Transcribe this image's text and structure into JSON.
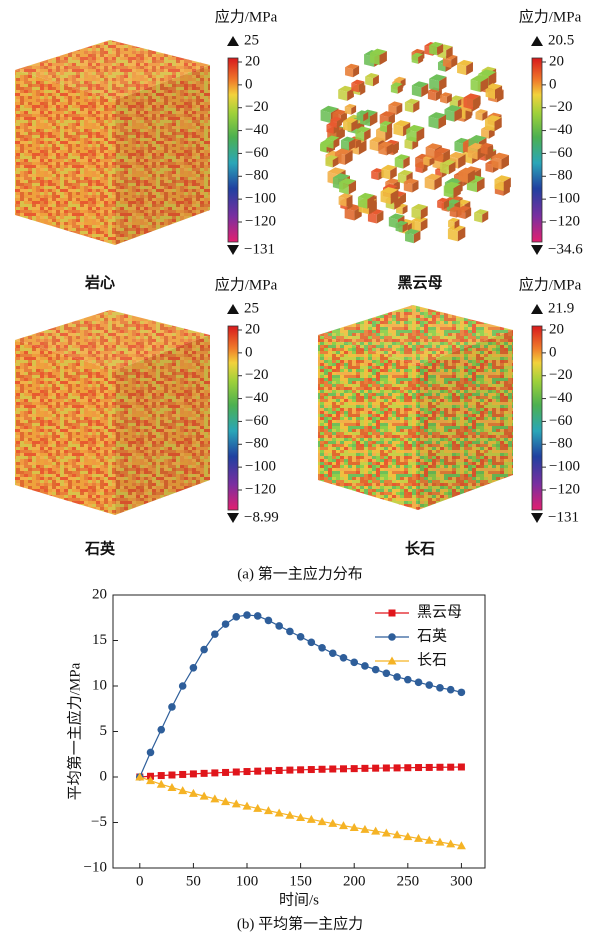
{
  "panel_a": {
    "caption": "(a) 第一主应力分布",
    "colorbar_ticks": [
      20,
      0,
      -20,
      -40,
      -60,
      -80,
      -100,
      -120
    ],
    "panels": [
      {
        "label": "岩心",
        "unit_title": "应力/MPa",
        "max": 25,
        "min": -131
      },
      {
        "label": "黑云母",
        "unit_title": "应力/MPa",
        "max": 20.5,
        "min": -34.6
      },
      {
        "label": "石英",
        "unit_title": "应力/MPa",
        "max": 25,
        "min": -8.99
      },
      {
        "label": "长石",
        "unit_title": "应力/MPa",
        "max": 21.9,
        "min": -131
      }
    ]
  },
  "chart_data": {
    "type": "line",
    "caption": "(b) 平均第一主应力",
    "x_label": "时间/s",
    "y_label": "平均第一主应力/MPa",
    "x": [
      0,
      10,
      20,
      30,
      40,
      50,
      60,
      70,
      80,
      90,
      100,
      110,
      120,
      130,
      140,
      150,
      160,
      170,
      180,
      190,
      200,
      210,
      220,
      230,
      240,
      250,
      260,
      270,
      280,
      290,
      300
    ],
    "series": [
      {
        "name": "黑云母",
        "color": "#e0151b",
        "marker": "square",
        "values": [
          0,
          0.08,
          0.16,
          0.22,
          0.28,
          0.34,
          0.4,
          0.45,
          0.5,
          0.55,
          0.6,
          0.64,
          0.68,
          0.72,
          0.76,
          0.79,
          0.82,
          0.85,
          0.88,
          0.9,
          0.92,
          0.95,
          0.97,
          0.99,
          1.0,
          1.02,
          1.04,
          1.05,
          1.07,
          1.08,
          1.1
        ]
      },
      {
        "name": "石英",
        "color": "#2e5e9a",
        "marker": "circle",
        "values": [
          0,
          2.7,
          5.2,
          7.7,
          10,
          12,
          14,
          15.7,
          16.8,
          17.6,
          17.8,
          17.7,
          17.2,
          16.6,
          16.0,
          15.4,
          14.8,
          14.2,
          13.6,
          13.1,
          12.6,
          12.2,
          11.8,
          11.4,
          11.0,
          10.7,
          10.4,
          10.1,
          9.8,
          9.6,
          9.3
        ]
      },
      {
        "name": "长石",
        "color": "#f5b325",
        "marker": "triangle",
        "values": [
          0,
          -0.4,
          -0.8,
          -1.15,
          -1.5,
          -1.8,
          -2.1,
          -2.4,
          -2.7,
          -2.95,
          -3.2,
          -3.45,
          -3.7,
          -3.95,
          -4.2,
          -4.45,
          -4.65,
          -4.9,
          -5.1,
          -5.35,
          -5.55,
          -5.75,
          -5.95,
          -6.15,
          -6.35,
          -6.55,
          -6.75,
          -6.95,
          -7.15,
          -7.35,
          -7.55
        ]
      }
    ],
    "xlim": [
      -25,
      322
    ],
    "xticks": [
      0,
      50,
      100,
      150,
      200,
      250,
      300
    ],
    "ylim": [
      -10,
      20
    ],
    "yticks": [
      -10,
      -5,
      0,
      5,
      10,
      15,
      20
    ],
    "legend": "upper right"
  }
}
